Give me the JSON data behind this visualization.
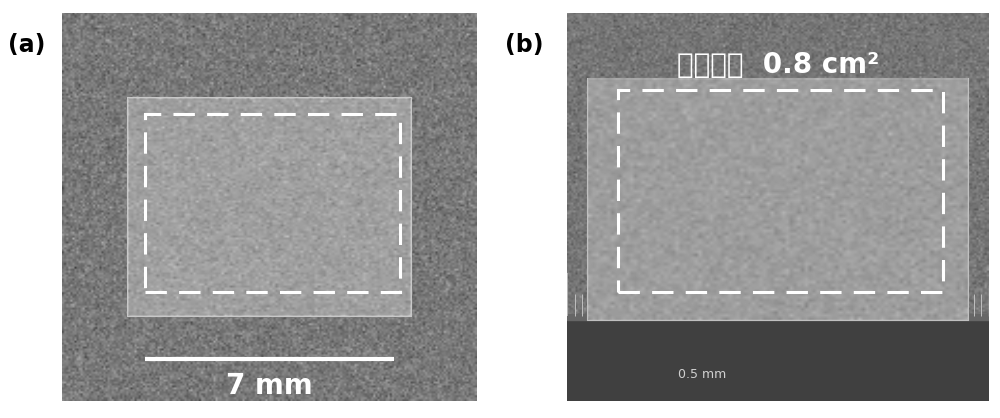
{
  "fig_width": 10.0,
  "fig_height": 4.18,
  "dpi": 100,
  "panel_a_label": "(a)",
  "panel_b_label": "(b)",
  "scale_bar_text": "7 mm",
  "scale_ruler_text": "0.5 mm",
  "photo_bg": "#6e6e6e",
  "photo_bg_b": "#6a6a6a",
  "film_color_a": "#a0a0a0",
  "film_color_b": "#b0b0b0",
  "ruler_dark": "#4a4a4a",
  "white": "#ffffff",
  "black": "#000000",
  "label_fontsize": 17,
  "annotation_fontsize": 20,
  "scalebar_fontsize": 20
}
